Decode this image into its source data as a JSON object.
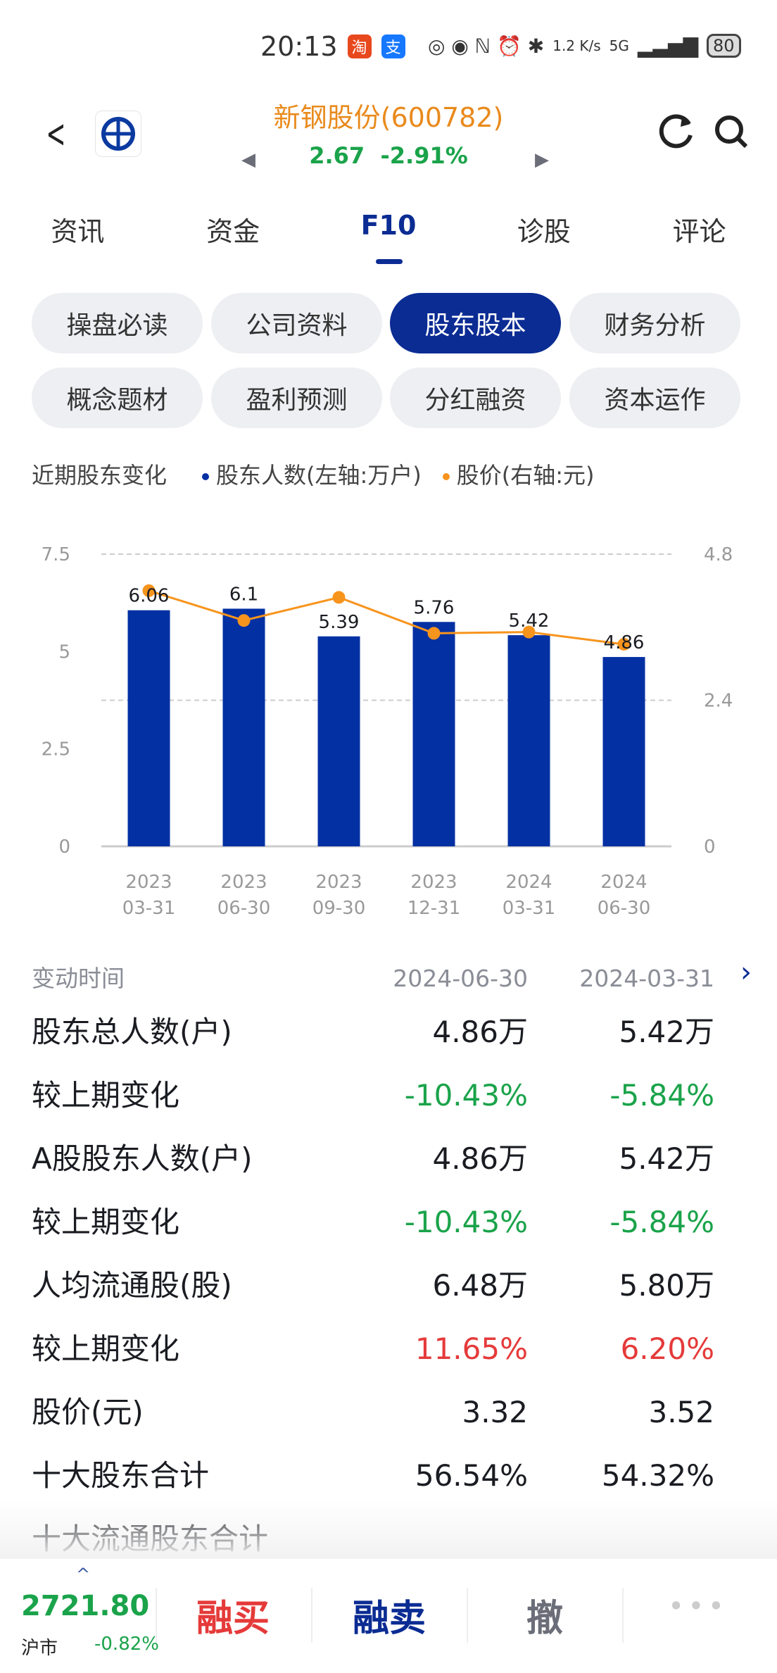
{
  "status": {
    "time": "20:13",
    "net_speed": "1.2 K/s",
    "signal": "5G",
    "battery": "80"
  },
  "header": {
    "title": "新钢股份(600782)",
    "price": "2.67",
    "change": "-2.91%",
    "back_icon": "chevron-left-icon",
    "refresh_icon": "refresh-icon",
    "search_icon": "search-icon"
  },
  "tabs": [
    {
      "label": "资讯"
    },
    {
      "label": "资金"
    },
    {
      "label": "F10",
      "active": true
    },
    {
      "label": "诊股"
    },
    {
      "label": "评论"
    }
  ],
  "chips": [
    {
      "label": "操盘必读"
    },
    {
      "label": "公司资料"
    },
    {
      "label": "股东股本",
      "active": true
    },
    {
      "label": "财务分析"
    },
    {
      "label": "概念题材"
    },
    {
      "label": "盈利预测"
    },
    {
      "label": "分红融资"
    },
    {
      "label": "资本运作"
    }
  ],
  "section": {
    "title": "近期股东变化",
    "legend_bar": "股东人数(左轴:万户)",
    "legend_line": "股价(右轴:元)"
  },
  "colors": {
    "bar": "#0330a3",
    "line": "#f7941d",
    "up": "#e53a3a",
    "down": "#1aa34a",
    "accent": "#0b2c93"
  },
  "chart_data": {
    "type": "bar+line",
    "categories": [
      [
        "2023",
        "03-31"
      ],
      [
        "2023",
        "06-30"
      ],
      [
        "2023",
        "09-30"
      ],
      [
        "2023",
        "12-31"
      ],
      [
        "2024",
        "03-31"
      ],
      [
        "2024",
        "06-30"
      ]
    ],
    "series": [
      {
        "name": "股东人数(左轴:万户)",
        "type": "bar",
        "axis": "left",
        "values": [
          6.06,
          6.1,
          5.39,
          5.76,
          5.42,
          4.86
        ]
      },
      {
        "name": "股价(右轴:元)",
        "type": "line",
        "axis": "right",
        "values": [
          4.2,
          3.71,
          4.09,
          3.5,
          3.52,
          3.32
        ]
      }
    ],
    "left_ticks": [
      "7.5",
      "5",
      "2.5",
      "0"
    ],
    "right_ticks": [
      "4.8",
      "2.4",
      "0"
    ],
    "ylim_left": [
      0,
      7.5
    ],
    "ylim_right": [
      0,
      4.8
    ],
    "grid": "dashed"
  },
  "table": {
    "header": {
      "label": "变动时间",
      "col1": "2024-06-30",
      "col2": "2024-03-31"
    },
    "rows": [
      {
        "label": "股东总人数(户)",
        "v1": "4.86万",
        "v2": "5.42万",
        "c": ""
      },
      {
        "label": "较上期变化",
        "v1": "-10.43%",
        "v2": "-5.84%",
        "c": "green"
      },
      {
        "label": "A股股东人数(户)",
        "v1": "4.86万",
        "v2": "5.42万",
        "c": ""
      },
      {
        "label": "较上期变化",
        "v1": "-10.43%",
        "v2": "-5.84%",
        "c": "green"
      },
      {
        "label": "人均流通股(股)",
        "v1": "6.48万",
        "v2": "5.80万",
        "c": ""
      },
      {
        "label": "较上期变化",
        "v1": "11.65%",
        "v2": "6.20%",
        "c": "red"
      },
      {
        "label": "股价(元)",
        "v1": "3.32",
        "v2": "3.52",
        "c": ""
      },
      {
        "label": "十大股东合计",
        "v1": "56.54%",
        "v2": "54.32%",
        "c": ""
      },
      {
        "label": "十大流通股东合计",
        "v1": "",
        "v2": "",
        "c": ""
      }
    ]
  },
  "bottom": {
    "index_value": "2721.80",
    "index_name": "沪市",
    "index_change": "-0.82%",
    "buy": "融买",
    "sell": "融卖",
    "cancel": "撤",
    "more": "•••"
  }
}
